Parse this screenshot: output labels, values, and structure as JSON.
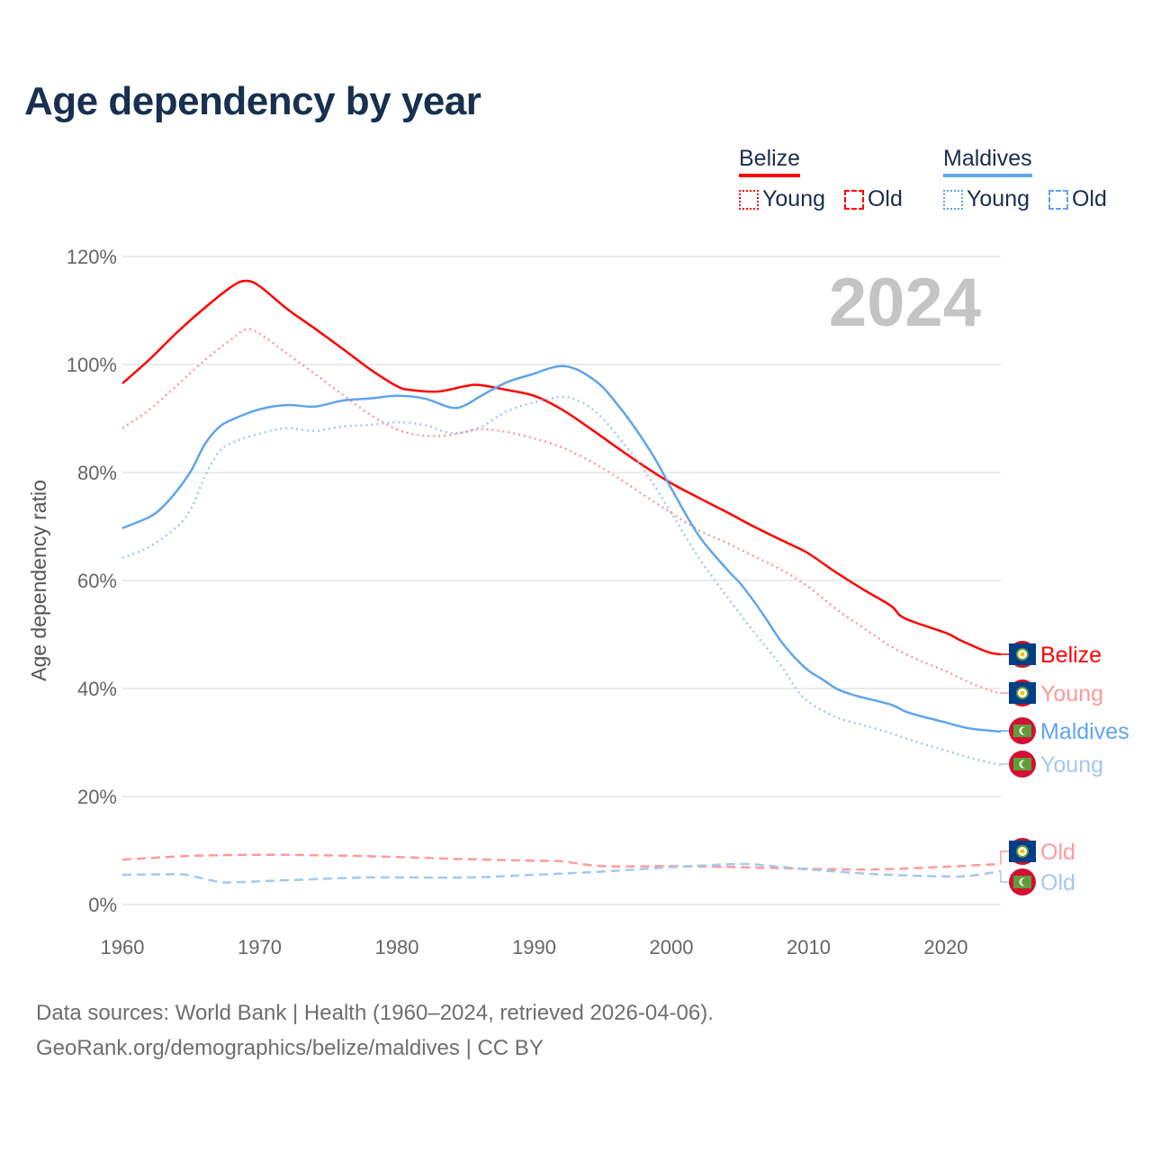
{
  "title": "Age dependency by year",
  "legend": {
    "groups": [
      {
        "name": "Belize",
        "color": "#ff0000",
        "items": [
          {
            "label": "Young",
            "style": "dotted"
          },
          {
            "label": "Old",
            "style": "dashed"
          }
        ]
      },
      {
        "name": "Maldives",
        "color": "#5fa5ec",
        "items": [
          {
            "label": "Young",
            "style": "dotted"
          },
          {
            "label": "Old",
            "style": "dashed"
          }
        ]
      }
    ]
  },
  "year_watermark": "2024",
  "footer": {
    "line1": "Data sources: World Bank | Health (1960–2024, retrieved 2026-04-06).",
    "line2": "GeoRank.org/demographics/belize/maldives | CC BY"
  },
  "chart_data": {
    "type": "line",
    "title": "Age dependency by year",
    "xlabel": "",
    "ylabel": "Age dependency ratio",
    "xlim": [
      1960,
      2024
    ],
    "ylim": [
      0,
      120
    ],
    "x_ticks": [
      "1960",
      "1970",
      "1980",
      "1990",
      "2000",
      "2010",
      "2020"
    ],
    "y_ticks": [
      "0%",
      "20%",
      "40%",
      "60%",
      "80%",
      "100%",
      "120%"
    ],
    "grid": true,
    "series": [
      {
        "name": "Belize",
        "end_label": "Belize",
        "country": "belize",
        "color": "#ff0000",
        "dash": "solid",
        "points": [
          [
            1960,
            96.5
          ],
          [
            1962,
            101
          ],
          [
            1964,
            106
          ],
          [
            1966,
            110.5
          ],
          [
            1968,
            114.5
          ],
          [
            1969,
            115.5
          ],
          [
            1970,
            114.5
          ],
          [
            1972,
            110.3
          ],
          [
            1974,
            106.7
          ],
          [
            1976,
            103
          ],
          [
            1978,
            99.2
          ],
          [
            1980,
            96
          ],
          [
            1981,
            95.3
          ],
          [
            1983,
            95
          ],
          [
            1985,
            96
          ],
          [
            1986,
            96.2
          ],
          [
            1988,
            95.3
          ],
          [
            1990,
            94.2
          ],
          [
            1992,
            91.7
          ],
          [
            1994,
            88.3
          ],
          [
            1996,
            84.7
          ],
          [
            1998,
            81.2
          ],
          [
            2000,
            78
          ],
          [
            2002,
            75.3
          ],
          [
            2004,
            72.7
          ],
          [
            2006,
            70
          ],
          [
            2008,
            67.5
          ],
          [
            2009,
            66.3
          ],
          [
            2010,
            65
          ],
          [
            2012,
            61.5
          ],
          [
            2014,
            58.3
          ],
          [
            2016,
            55.3
          ],
          [
            2017,
            53
          ],
          [
            2020,
            50.3
          ],
          [
            2021,
            49
          ],
          [
            2023,
            46.8
          ],
          [
            2024,
            46.3
          ]
        ]
      },
      {
        "name": "Belize Young",
        "end_label": "Young",
        "country": "belize",
        "color": "#ff9a9a",
        "dash": "dotted",
        "points": [
          [
            1960,
            88.2
          ],
          [
            1962,
            91.7
          ],
          [
            1964,
            96.2
          ],
          [
            1966,
            100.8
          ],
          [
            1968,
            104.8
          ],
          [
            1969,
            106.5
          ],
          [
            1970,
            105.7
          ],
          [
            1972,
            102
          ],
          [
            1974,
            98.3
          ],
          [
            1976,
            94.5
          ],
          [
            1978,
            90.8
          ],
          [
            1980,
            88
          ],
          [
            1982,
            86.8
          ],
          [
            1984,
            87
          ],
          [
            1986,
            88
          ],
          [
            1988,
            87.5
          ],
          [
            1990,
            86.3
          ],
          [
            1992,
            84.7
          ],
          [
            1994,
            82.2
          ],
          [
            1996,
            79.2
          ],
          [
            1998,
            75.8
          ],
          [
            2000,
            72.5
          ],
          [
            2002,
            69.3
          ],
          [
            2004,
            67
          ],
          [
            2006,
            64.5
          ],
          [
            2008,
            62
          ],
          [
            2010,
            58.8
          ],
          [
            2012,
            54.7
          ],
          [
            2014,
            51.2
          ],
          [
            2016,
            47.8
          ],
          [
            2018,
            45.3
          ],
          [
            2020,
            43.2
          ],
          [
            2022,
            40.8
          ],
          [
            2024,
            39
          ]
        ]
      },
      {
        "name": "Maldives",
        "end_label": "Maldives",
        "country": "maldives",
        "color": "#5fa5ec",
        "dash": "solid",
        "points": [
          [
            1960,
            69.7
          ],
          [
            1962,
            71.8
          ],
          [
            1963,
            73.8
          ],
          [
            1964,
            76.7
          ],
          [
            1965,
            80.3
          ],
          [
            1966,
            85.2
          ],
          [
            1967,
            88.3
          ],
          [
            1968,
            89.8
          ],
          [
            1970,
            91.7
          ],
          [
            1972,
            92.5
          ],
          [
            1974,
            92.2
          ],
          [
            1976,
            93.3
          ],
          [
            1978,
            93.7
          ],
          [
            1980,
            94.2
          ],
          [
            1982,
            93.7
          ],
          [
            1984,
            92
          ],
          [
            1985,
            92.5
          ],
          [
            1986,
            94
          ],
          [
            1988,
            96.7
          ],
          [
            1990,
            98.3
          ],
          [
            1991,
            99.2
          ],
          [
            1992,
            99.7
          ],
          [
            1993,
            99.2
          ],
          [
            1994,
            97.8
          ],
          [
            1995,
            95.8
          ],
          [
            1996,
            92.8
          ],
          [
            1997,
            89.5
          ],
          [
            1998,
            85.8
          ],
          [
            1999,
            81.7
          ],
          [
            2000,
            77
          ],
          [
            2002,
            68.3
          ],
          [
            2004,
            62.2
          ],
          [
            2005,
            59.5
          ],
          [
            2006,
            56.2
          ],
          [
            2007,
            52.5
          ],
          [
            2008,
            48.7
          ],
          [
            2009,
            45.7
          ],
          [
            2010,
            43.3
          ],
          [
            2011,
            41.7
          ],
          [
            2012,
            40
          ],
          [
            2013,
            39
          ],
          [
            2014,
            38.3
          ],
          [
            2016,
            37
          ],
          [
            2017,
            35.8
          ],
          [
            2018,
            35
          ],
          [
            2020,
            33.7
          ],
          [
            2021,
            33
          ],
          [
            2022,
            32.5
          ],
          [
            2024,
            32
          ]
        ]
      },
      {
        "name": "Maldives Young",
        "end_label": "Young",
        "country": "maldives",
        "color": "#a3c9f1",
        "dash": "dotted",
        "points": [
          [
            1960,
            64.2
          ],
          [
            1962,
            66.3
          ],
          [
            1964,
            70
          ],
          [
            1965,
            73.3
          ],
          [
            1966,
            79.2
          ],
          [
            1967,
            83.7
          ],
          [
            1968,
            85.5
          ],
          [
            1970,
            87.2
          ],
          [
            1972,
            88.2
          ],
          [
            1974,
            87.7
          ],
          [
            1976,
            88.5
          ],
          [
            1978,
            88.8
          ],
          [
            1980,
            89.3
          ],
          [
            1982,
            88.8
          ],
          [
            1984,
            87.3
          ],
          [
            1986,
            88.3
          ],
          [
            1988,
            91.3
          ],
          [
            1990,
            93
          ],
          [
            1992,
            94
          ],
          [
            1993,
            93.5
          ],
          [
            1994,
            92.2
          ],
          [
            1995,
            90
          ],
          [
            1996,
            87
          ],
          [
            1998,
            80.5
          ],
          [
            2000,
            72.5
          ],
          [
            2002,
            64.2
          ],
          [
            2004,
            57.2
          ],
          [
            2006,
            50.5
          ],
          [
            2008,
            44.2
          ],
          [
            2009,
            40.3
          ],
          [
            2010,
            37.5
          ],
          [
            2012,
            34.7
          ],
          [
            2014,
            33.2
          ],
          [
            2016,
            31.7
          ],
          [
            2018,
            30
          ],
          [
            2020,
            28.5
          ],
          [
            2022,
            27
          ],
          [
            2024,
            25.8
          ]
        ]
      },
      {
        "name": "Belize Old",
        "end_label": "Old",
        "country": "belize",
        "color": "#ff9a9a",
        "dash": "dashed",
        "points": [
          [
            1960,
            8.3
          ],
          [
            1965,
            9
          ],
          [
            1970,
            9.2
          ],
          [
            1975,
            9.1
          ],
          [
            1980,
            8.8
          ],
          [
            1985,
            8.4
          ],
          [
            1990,
            8.1
          ],
          [
            1992,
            8
          ],
          [
            1995,
            7.1
          ],
          [
            2000,
            7.1
          ],
          [
            2005,
            6.9
          ],
          [
            2010,
            6.6
          ],
          [
            2015,
            6.5
          ],
          [
            2020,
            7
          ],
          [
            2024,
            7.5
          ]
        ]
      },
      {
        "name": "Maldives Old",
        "end_label": "Old",
        "country": "maldives",
        "color": "#a3c9f1",
        "dash": "dashed",
        "points": [
          [
            1960,
            5.5
          ],
          [
            1964,
            5.6
          ],
          [
            1965,
            5.3
          ],
          [
            1967,
            4.2
          ],
          [
            1968,
            4.1
          ],
          [
            1972,
            4.5
          ],
          [
            1978,
            5
          ],
          [
            1985,
            5
          ],
          [
            1990,
            5.5
          ],
          [
            1995,
            6.1
          ],
          [
            2000,
            6.9
          ],
          [
            2005,
            7.5
          ],
          [
            2007,
            7.2
          ],
          [
            2010,
            6.5
          ],
          [
            2015,
            5.6
          ],
          [
            2020,
            5.2
          ],
          [
            2022,
            5.4
          ],
          [
            2024,
            6.2
          ]
        ]
      }
    ]
  }
}
